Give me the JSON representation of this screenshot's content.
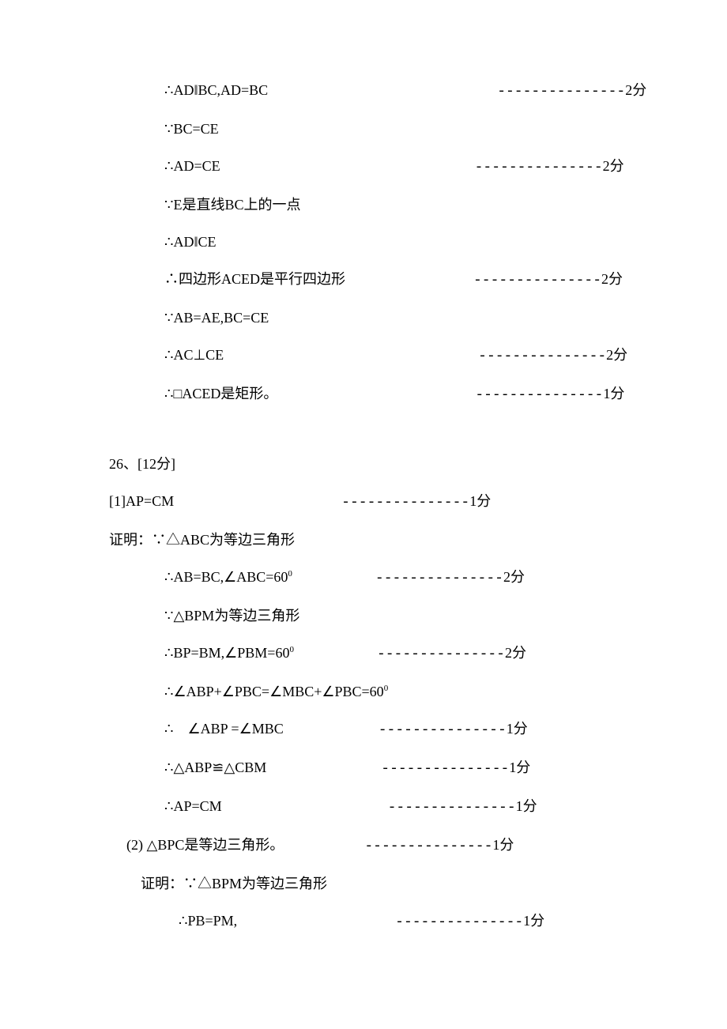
{
  "font": {
    "family": "SimSun",
    "size_pt": 14,
    "color": "#000000"
  },
  "background_color": "#ffffff",
  "lines": [
    {
      "indent": "indent-1",
      "text": "∴AD‖BC,AD=BC",
      "gap": 280,
      "dash": "---------------",
      "score": "2分"
    },
    {
      "indent": "indent-1",
      "text": "∵BC=CE"
    },
    {
      "indent": "indent-1",
      "text": "∴AD=CE",
      "gap": 312,
      "dash": "---------------",
      "score": "2分"
    },
    {
      "indent": "indent-1",
      "text": "∵E是直线BC上的一点"
    },
    {
      "indent": "indent-1",
      "text": "∴AD‖CE"
    },
    {
      "indent": "indent-1",
      "text": "∴四边形ACED是平行四边形",
      "gap": 152,
      "dash": "---------------",
      "score": "2分"
    },
    {
      "indent": "indent-1",
      "text": "∵AB=AE,BC=CE"
    },
    {
      "indent": "indent-1",
      "text": "∴AC⊥CE",
      "gap": 312,
      "dash": "---------------",
      "score": "2分"
    },
    {
      "indent": "indent-1",
      "text": "∴□ACED是矩形。",
      "gap": 240,
      "dash": "---------------",
      "score": "1分"
    },
    {
      "spacer": true
    },
    {
      "indent": "",
      "text": "26、[12分]"
    },
    {
      "indent": "",
      "text": "[1]AP=CM",
      "gap": 202,
      "dash": "---------------",
      "score": "1分"
    },
    {
      "indent": "",
      "text": "证明：∵△ABC为等边三角形"
    },
    {
      "indent": "indent-1",
      "text": "∴AB=BC,∠ABC=60",
      "sup": "0",
      "gap": 95,
      "dash": "---------------",
      "score": "2分"
    },
    {
      "indent": "indent-1",
      "text": "∵△BPM为等边三角形"
    },
    {
      "indent": "indent-1",
      "text": "∴BP=BM,∠PBM=60",
      "sup": "0",
      "gap": 95,
      "dash": "---------------",
      "score": "2分"
    },
    {
      "indent": "indent-1",
      "text": "∴∠ABP+∠PBC=∠MBC+∠PBC=60",
      "sup": "0"
    },
    {
      "indent": "indent-1",
      "text": "∴　∠ABP =∠MBC",
      "gap": 110,
      "dash": "---------------",
      "score": "1分"
    },
    {
      "indent": "indent-1",
      "text": "∴△ABP≌△CBM",
      "gap": 135,
      "dash": "---------------",
      "score": "1分"
    },
    {
      "indent": "indent-1",
      "text": "∴AP=CM",
      "gap": 200,
      "dash": "---------------",
      "score": "1分"
    },
    {
      "indent": "indent-2",
      "text": "(2) △BPC是等边三角形。",
      "gap": 92,
      "dash": "---------------",
      "score": "1分"
    },
    {
      "indent": "indent-2",
      "text": "　证明：∵△BPM为等边三角形"
    },
    {
      "indent": "indent-3",
      "text": "∴PB=PM,",
      "gap": 190,
      "dash": "---------------",
      "score": "1分"
    }
  ]
}
